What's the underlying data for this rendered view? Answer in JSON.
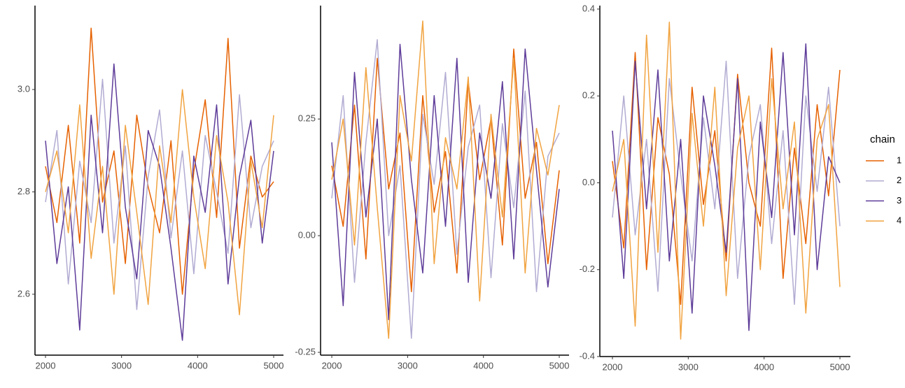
{
  "chart_data": [
    {
      "type": "line",
      "x": [
        2000,
        2150,
        2300,
        2450,
        2600,
        2750,
        2900,
        3050,
        3200,
        3350,
        3500,
        3650,
        3800,
        3950,
        4100,
        4250,
        4400,
        4550,
        4700,
        4850,
        5000
      ],
      "xlim": [
        1862,
        5129
      ],
      "xticks": [
        2000,
        3000,
        4000,
        5000
      ],
      "ylim": [
        2.481,
        3.164
      ],
      "yticks": [
        {
          "value": 3.0,
          "label": "3.0"
        },
        2.8,
        2.6
      ],
      "series": [
        {
          "name": "1",
          "color": "#e66101",
          "values": [
            2.85,
            2.74,
            2.93,
            2.7,
            3.12,
            2.78,
            2.88,
            2.66,
            2.95,
            2.81,
            2.72,
            2.9,
            2.6,
            2.84,
            2.98,
            2.75,
            3.1,
            2.69,
            2.87,
            2.79,
            2.82
          ]
        },
        {
          "name": "2",
          "color": "#b2abd2",
          "values": [
            2.78,
            2.92,
            2.62,
            2.86,
            2.74,
            3.02,
            2.7,
            2.89,
            2.57,
            2.83,
            2.96,
            2.71,
            2.88,
            2.64,
            2.91,
            2.8,
            2.68,
            2.99,
            2.73,
            2.85,
            2.9
          ]
        },
        {
          "name": "3",
          "color": "#5e3c99",
          "values": [
            2.9,
            2.66,
            2.81,
            2.53,
            2.95,
            2.72,
            3.05,
            2.77,
            2.63,
            2.92,
            2.85,
            2.69,
            2.51,
            2.87,
            2.76,
            2.97,
            2.62,
            2.83,
            2.94,
            2.7,
            2.88
          ]
        },
        {
          "name": "4",
          "color": "#f1a340",
          "values": [
            2.8,
            2.88,
            2.72,
            2.97,
            2.67,
            2.85,
            2.6,
            2.93,
            2.76,
            2.58,
            2.89,
            2.74,
            3.0,
            2.79,
            2.65,
            2.91,
            2.78,
            2.56,
            2.86,
            2.73,
            2.95
          ]
        }
      ]
    },
    {
      "type": "line",
      "x": [
        2000,
        2150,
        2300,
        2450,
        2600,
        2750,
        2900,
        3050,
        3200,
        3350,
        3500,
        3650,
        3800,
        3950,
        4100,
        4250,
        4400,
        4550,
        4700,
        4850,
        5000
      ],
      "xlim": [
        1852,
        5129
      ],
      "xticks": [
        2000,
        3000,
        4000,
        5000
      ],
      "ylim": [
        -0.256,
        0.493
      ],
      "yticks": [
        0.25,
        {
          "value": 0,
          "label": "0.00"
        },
        -0.25
      ],
      "series": [
        {
          "name": "1",
          "color": "#e66101",
          "values": [
            0.15,
            0.02,
            0.28,
            -0.05,
            0.38,
            0.1,
            0.22,
            -0.12,
            0.3,
            0.05,
            0.18,
            -0.08,
            0.33,
            0.12,
            0.25,
            -0.02,
            0.4,
            0.08,
            0.2,
            -0.06,
            0.14
          ]
        },
        {
          "name": "2",
          "color": "#b2abd2",
          "values": [
            0.08,
            0.3,
            -0.1,
            0.2,
            0.42,
            0.0,
            0.15,
            -0.22,
            0.26,
            0.11,
            0.35,
            -0.04,
            0.19,
            0.28,
            -0.09,
            0.24,
            0.06,
            0.31,
            -0.12,
            0.17,
            0.22
          ]
        },
        {
          "name": "3",
          "color": "#5e3c99",
          "values": [
            0.2,
            -0.15,
            0.35,
            0.04,
            0.25,
            -0.18,
            0.41,
            0.12,
            -0.08,
            0.3,
            0.02,
            0.38,
            -0.1,
            0.22,
            0.08,
            0.33,
            -0.05,
            0.4,
            0.14,
            -0.11,
            0.1
          ]
        },
        {
          "name": "4",
          "color": "#f1a340",
          "values": [
            0.12,
            0.25,
            -0.02,
            0.36,
            0.06,
            -0.22,
            0.3,
            0.16,
            0.46,
            -0.06,
            0.21,
            0.1,
            0.34,
            -0.14,
            0.26,
            0.04,
            0.38,
            -0.08,
            0.23,
            0.13,
            0.28
          ]
        }
      ]
    },
    {
      "type": "line",
      "x": [
        2000,
        2150,
        2300,
        2450,
        2600,
        2750,
        2900,
        3050,
        3200,
        3350,
        3500,
        3650,
        3800,
        3950,
        4100,
        4250,
        4400,
        4550,
        4700,
        4850,
        5000
      ],
      "xlim": [
        1834,
        5138
      ],
      "xticks": [
        2000,
        3000,
        4000,
        5000
      ],
      "ylim": [
        -0.4,
        0.408
      ],
      "yticks": [
        0.4,
        0.2,
        {
          "value": 0,
          "label": "0.0"
        },
        -0.2,
        -0.4
      ],
      "legend": "right",
      "legend_title": "chain",
      "series": [
        {
          "name": "1",
          "color": "#e66101",
          "values": [
            0.05,
            -0.15,
            0.3,
            -0.2,
            0.15,
            0.02,
            -0.28,
            0.22,
            -0.05,
            0.12,
            -0.18,
            0.25,
            0.0,
            -0.1,
            0.31,
            -0.22,
            0.08,
            -0.14,
            0.18,
            -0.03,
            0.26
          ]
        },
        {
          "name": "2",
          "color": "#b2abd2",
          "values": [
            -0.08,
            0.2,
            -0.12,
            0.1,
            -0.25,
            0.24,
            0.02,
            -0.18,
            0.15,
            -0.06,
            0.28,
            -0.22,
            0.06,
            0.18,
            -0.14,
            0.12,
            -0.28,
            0.2,
            -0.02,
            0.22,
            -0.1
          ]
        },
        {
          "name": "3",
          "color": "#5e3c99",
          "values": [
            0.12,
            -0.22,
            0.28,
            -0.06,
            0.26,
            -0.18,
            0.1,
            -0.3,
            0.2,
            0.04,
            -0.16,
            0.24,
            -0.34,
            0.14,
            -0.08,
            0.3,
            -0.12,
            0.32,
            -0.2,
            0.06,
            0.0
          ]
        },
        {
          "name": "4",
          "color": "#f1a340",
          "values": [
            -0.02,
            0.1,
            -0.33,
            0.34,
            -0.16,
            0.37,
            -0.36,
            0.16,
            -0.1,
            0.22,
            -0.26,
            0.08,
            0.2,
            -0.2,
            0.24,
            -0.06,
            0.14,
            -0.3,
            0.1,
            0.18,
            -0.24
          ]
        }
      ]
    }
  ]
}
